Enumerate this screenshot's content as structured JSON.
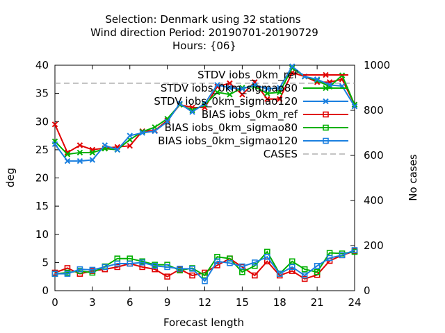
{
  "chart_data": {
    "type": "line",
    "title_lines": [
      "Selection: Denmark using    32 stations",
      "Wind direction   Period: 20190701-20190729",
      "Hours: {06}"
    ],
    "xlabel": "Forecast length",
    "ylabel": "deg",
    "y2label": "No cases",
    "xlim": [
      0,
      24
    ],
    "ylim": [
      0,
      40
    ],
    "y2lim": [
      0,
      1000
    ],
    "xticks": [
      0,
      3,
      6,
      9,
      12,
      15,
      18,
      21,
      24
    ],
    "yticks": [
      0,
      5,
      10,
      15,
      20,
      25,
      30,
      35,
      40
    ],
    "y2ticks": [
      0,
      200,
      400,
      600,
      800,
      1000
    ],
    "legend_position": "top-right",
    "x": [
      0,
      1,
      2,
      3,
      4,
      5,
      6,
      7,
      8,
      9,
      10,
      11,
      12,
      13,
      14,
      15,
      16,
      17,
      18,
      19,
      20,
      21,
      22,
      23,
      24
    ],
    "series": [
      {
        "name": "STDV iobs_0km_ref",
        "color": "#e00000",
        "marker": "x",
        "values": [
          29.5,
          24.5,
          25.8,
          25.0,
          25.3,
          25.5,
          25.7,
          28.3,
          28.4,
          30.2,
          33.0,
          32.5,
          32.5,
          36.2,
          36.8,
          34.8,
          37.0,
          34.0,
          34.0,
          38.7,
          38.0,
          37.0,
          37.0,
          37.5,
          33.0
        ]
      },
      {
        "name": "STDV iobs_0km_sigmao80",
        "color": "#00b000",
        "marker": "x",
        "values": [
          26.5,
          24.2,
          24.5,
          24.5,
          25.2,
          25.0,
          26.8,
          28.2,
          29.0,
          30.5,
          33.0,
          32.0,
          33.0,
          35.2,
          34.8,
          36.0,
          36.2,
          35.0,
          35.2,
          39.5,
          38.0,
          37.3,
          36.2,
          38.2,
          33.0
        ]
      },
      {
        "name": "STDV iobs_0km_sigmao120",
        "color": "#1a7fdf",
        "marker": "x",
        "values": [
          26.0,
          23.0,
          23.0,
          23.2,
          25.8,
          25.0,
          27.5,
          28.0,
          28.3,
          30.0,
          33.2,
          31.7,
          33.2,
          36.5,
          36.0,
          35.8,
          36.5,
          35.8,
          36.0,
          39.8,
          38.0,
          37.5,
          36.5,
          36.3,
          32.7
        ]
      },
      {
        "name": "BIAS iobs_0km_ref",
        "color": "#e00000",
        "marker": "square",
        "values": [
          3.2,
          4.0,
          3.0,
          3.5,
          3.8,
          4.2,
          4.8,
          4.2,
          3.8,
          2.5,
          3.8,
          2.7,
          3.2,
          4.5,
          5.7,
          4.2,
          2.7,
          5.2,
          2.7,
          3.5,
          2.1,
          2.8,
          5.3,
          6.3,
          7.0
        ]
      },
      {
        "name": "BIAS iobs_0km_sigmao80",
        "color": "#00b000",
        "marker": "square",
        "values": [
          3.0,
          3.2,
          3.5,
          3.2,
          4.3,
          5.7,
          5.7,
          5.2,
          4.6,
          4.6,
          3.6,
          4.0,
          2.7,
          6.0,
          5.7,
          3.3,
          4.4,
          6.9,
          3.0,
          5.2,
          3.8,
          3.3,
          6.7,
          6.6,
          6.9
        ]
      },
      {
        "name": "BIAS iobs_0km_sigmao120",
        "color": "#1a7fdf",
        "marker": "square",
        "values": [
          3.0,
          3.0,
          3.8,
          3.7,
          4.2,
          4.8,
          4.8,
          5.0,
          4.4,
          4.2,
          3.9,
          3.9,
          1.7,
          5.2,
          4.9,
          4.3,
          5.0,
          6.0,
          3.0,
          4.2,
          2.7,
          4.4,
          5.8,
          6.3,
          7.2
        ]
      }
    ],
    "cases": {
      "name": "CASES",
      "color": "#a0a0a0",
      "dash": "dashed",
      "axis": "y2",
      "x": [
        0,
        1,
        2,
        3,
        4,
        5,
        6,
        7,
        8,
        9,
        10,
        11,
        12,
        13,
        14,
        15,
        16,
        17,
        18,
        19,
        20,
        21,
        22,
        23,
        24
      ],
      "values": [
        920,
        920,
        920,
        920,
        920,
        920,
        920,
        920,
        920,
        920,
        920,
        920,
        920,
        920,
        920,
        920,
        920,
        920,
        920,
        920,
        920,
        920,
        920,
        920,
        920
      ]
    }
  }
}
